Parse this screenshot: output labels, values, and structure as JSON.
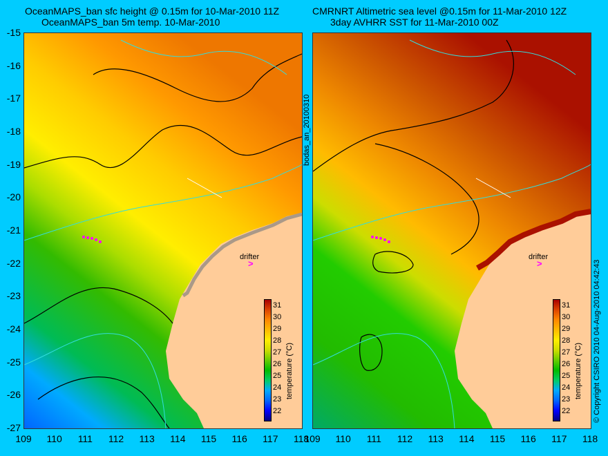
{
  "left_panel": {
    "title_line1": "OceanMAPS_ban sfc height @ 0.15m for 10-Mar-2010 11Z",
    "title_line2": "OceanMAPS_ban 5m temp. 10-Mar-2010",
    "drifter_label": "drifter",
    "drifter_symbol": ">",
    "side_label": "bodas_an_20100310"
  },
  "right_panel": {
    "title_line1": "CMRNRT Altimetric sea level  @0.15m  for 11-Mar-2010 12Z",
    "title_line2": "3day AVHRR SST for 11-Mar-2010 00Z",
    "drifter_label": "drifter",
    "drifter_symbol": ">",
    "copyright": "© Copyright CSIRO 2010  04-Aug-2010 04:42:43"
  },
  "axes": {
    "x_ticks": [
      "109",
      "110",
      "111",
      "112",
      "113",
      "114",
      "115",
      "116",
      "117",
      "118"
    ],
    "y_ticks": [
      "-15",
      "-16",
      "-17",
      "-18",
      "-19",
      "-20",
      "-21",
      "-22",
      "-23",
      "-24",
      "-25",
      "-26",
      "-27"
    ],
    "x_range": [
      109,
      118
    ],
    "y_range": [
      -27,
      -15
    ]
  },
  "colorbar": {
    "label": "temperature (°C)",
    "ticks": [
      "31",
      "30",
      "29",
      "28",
      "27",
      "26",
      "25",
      "24",
      "23",
      "22"
    ],
    "range_c": [
      21.5,
      31.5
    ],
    "colors": [
      "#000080",
      "#0000ff",
      "#0066ff",
      "#00aaff",
      "#00cc66",
      "#00bb00",
      "#66cc00",
      "#ccdd00",
      "#ffee00",
      "#ffbb00",
      "#ff8800",
      "#dd4400",
      "#aa0000"
    ]
  },
  "colors": {
    "background": "#00ccff",
    "land": "#ffcc99",
    "land_shadow": "#aa9988",
    "contour_black": "#000000",
    "contour_cyan": "#33dddd",
    "drifter": "#ff00ff"
  }
}
